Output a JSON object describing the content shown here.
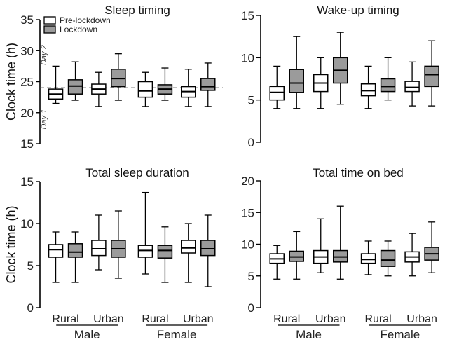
{
  "figure": {
    "groups": [
      "Male",
      "Female"
    ],
    "categories": [
      "Rural",
      "Urban",
      "Rural",
      "Urban"
    ],
    "legend": [
      {
        "label": "Pre-lockdown",
        "color": "#ffffff"
      },
      {
        "label": "Lockdown",
        "color": "#9b9b9b"
      }
    ]
  },
  "chart_data": [
    {
      "type": "box",
      "title": "Sleep timing",
      "ylabel": "Clock time (h)",
      "ylim": [
        15,
        35
      ],
      "yticks": [
        15,
        20,
        25,
        30,
        35
      ],
      "reference_line": 24,
      "annotations": [
        "Day 2",
        "Day 1"
      ],
      "boxes": [
        {
          "min": 21.5,
          "q1": 22.2,
          "median": 23.0,
          "q3": 23.8,
          "max": 27.5
        },
        {
          "min": 22.0,
          "q1": 23.0,
          "median": 24.3,
          "q3": 25.3,
          "max": 28.2
        },
        {
          "min": 21.0,
          "q1": 23.0,
          "median": 23.8,
          "q3": 24.6,
          "max": 26.5
        },
        {
          "min": 22.0,
          "q1": 24.2,
          "median": 25.5,
          "q3": 27.0,
          "max": 29.5
        },
        {
          "min": 21.0,
          "q1": 22.5,
          "median": 23.5,
          "q3": 25.0,
          "max": 26.5
        },
        {
          "min": 22.0,
          "q1": 23.0,
          "median": 23.8,
          "q3": 24.5,
          "max": 27.2
        },
        {
          "min": 21.0,
          "q1": 22.5,
          "median": 23.4,
          "q3": 24.2,
          "max": 27.0
        },
        {
          "min": 21.0,
          "q1": 23.6,
          "median": 24.2,
          "q3": 25.5,
          "max": 28.0
        }
      ]
    },
    {
      "type": "box",
      "title": "Wake-up timing",
      "ylabel": "",
      "ylim": [
        0,
        15
      ],
      "yticks": [
        0,
        5,
        10,
        15
      ],
      "boxes": [
        {
          "min": 4.0,
          "q1": 5.0,
          "median": 5.9,
          "q3": 6.6,
          "max": 9.0
        },
        {
          "min": 4.0,
          "q1": 5.9,
          "median": 7.0,
          "q3": 8.6,
          "max": 12.5
        },
        {
          "min": 4.0,
          "q1": 6.0,
          "median": 7.0,
          "q3": 8.0,
          "max": 10.0
        },
        {
          "min": 4.5,
          "q1": 7.0,
          "median": 8.5,
          "q3": 10.0,
          "max": 13.0
        },
        {
          "min": 4.0,
          "q1": 5.5,
          "median": 6.1,
          "q3": 6.9,
          "max": 9.0
        },
        {
          "min": 5.0,
          "q1": 6.0,
          "median": 6.6,
          "q3": 7.5,
          "max": 10.0
        },
        {
          "min": 4.3,
          "q1": 6.0,
          "median": 6.5,
          "q3": 7.2,
          "max": 9.5
        },
        {
          "min": 4.3,
          "q1": 6.6,
          "median": 8.0,
          "q3": 9.0,
          "max": 12.0
        }
      ]
    },
    {
      "type": "box",
      "title": "Total sleep duration",
      "ylabel": "Clock time (h)",
      "ylim": [
        0,
        15
      ],
      "yticks": [
        0,
        5,
        10,
        15
      ],
      "boxes": [
        {
          "min": 3.0,
          "q1": 6.0,
          "median": 6.9,
          "q3": 7.5,
          "max": 9.0
        },
        {
          "min": 3.0,
          "q1": 6.0,
          "median": 6.6,
          "q3": 7.6,
          "max": 9.0
        },
        {
          "min": 4.5,
          "q1": 6.2,
          "median": 7.0,
          "q3": 8.0,
          "max": 11.0
        },
        {
          "min": 3.5,
          "q1": 6.0,
          "median": 7.0,
          "q3": 8.0,
          "max": 11.5
        },
        {
          "min": 4.0,
          "q1": 6.0,
          "median": 6.8,
          "q3": 7.4,
          "max": 13.7
        },
        {
          "min": 3.0,
          "q1": 5.9,
          "median": 6.8,
          "q3": 7.4,
          "max": 9.6
        },
        {
          "min": 3.0,
          "q1": 6.5,
          "median": 7.1,
          "q3": 8.0,
          "max": 10.0
        },
        {
          "min": 2.5,
          "q1": 6.2,
          "median": 7.0,
          "q3": 8.0,
          "max": 11.0
        }
      ]
    },
    {
      "type": "box",
      "title": "Total time on bed",
      "ylabel": "",
      "ylim": [
        0,
        20
      ],
      "yticks": [
        0,
        5,
        10,
        15,
        20
      ],
      "boxes": [
        {
          "min": 4.5,
          "q1": 7.0,
          "median": 7.7,
          "q3": 8.5,
          "max": 9.8
        },
        {
          "min": 4.5,
          "q1": 7.3,
          "median": 8.0,
          "q3": 8.9,
          "max": 12.0
        },
        {
          "min": 5.5,
          "q1": 7.0,
          "median": 8.0,
          "q3": 9.0,
          "max": 14.0
        },
        {
          "min": 4.5,
          "q1": 7.2,
          "median": 8.0,
          "q3": 9.0,
          "max": 16.0
        },
        {
          "min": 5.2,
          "q1": 7.0,
          "median": 7.6,
          "q3": 8.5,
          "max": 10.5
        },
        {
          "min": 5.0,
          "q1": 6.5,
          "median": 7.5,
          "q3": 9.0,
          "max": 10.5
        },
        {
          "min": 5.0,
          "q1": 7.2,
          "median": 8.0,
          "q3": 8.8,
          "max": 11.7
        },
        {
          "min": 5.5,
          "q1": 7.5,
          "median": 8.5,
          "q3": 9.5,
          "max": 13.5
        }
      ]
    }
  ]
}
